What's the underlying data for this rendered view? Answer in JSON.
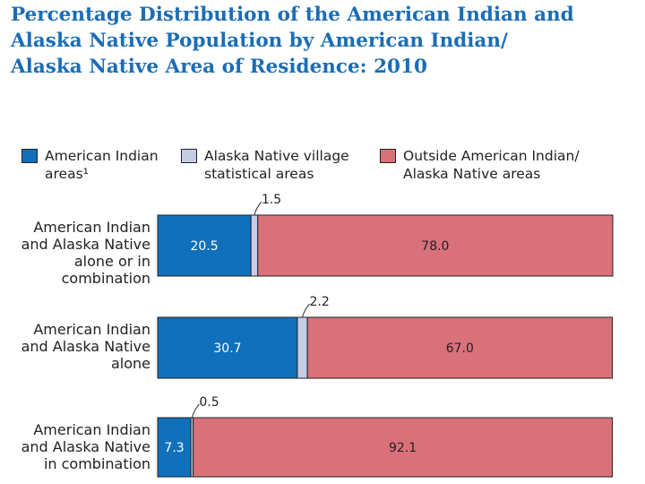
{
  "chart_data": {
    "type": "bar",
    "orientation": "horizontal",
    "stacked": true,
    "title": "Percentage Distribution of the American Indian and Alaska Native Population by American Indian/ Alaska Native Area of Residence: 2010",
    "title_lines": [
      "Percentage Distribution of the American Indian and",
      "Alaska Native Population by American Indian/",
      "Alaska Native Area of Residence: 2010"
    ],
    "categories": [
      "American Indian and Alaska Native alone or in combination",
      "American Indian and Alaska Native alone",
      "American Indian and Alaska Native in combination"
    ],
    "category_lines": [
      [
        "American Indian",
        "and Alaska Native",
        "alone or in",
        "combination"
      ],
      [
        "American Indian",
        "and Alaska Native",
        "alone"
      ],
      [
        "American Indian",
        "and Alaska Native",
        "in combination"
      ]
    ],
    "series": [
      {
        "name": "American Indian areas¹",
        "legend_lines": [
          "American Indian",
          "areas¹"
        ],
        "color": "#1170bb",
        "values": [
          20.5,
          30.7,
          7.3
        ],
        "labels": [
          "20.5",
          "30.7",
          "7.3"
        ]
      },
      {
        "name": "Alaska Native village statistical areas",
        "legend_lines": [
          "Alaska Native village",
          "statistical areas"
        ],
        "color": "#c6cce6",
        "values": [
          1.5,
          2.2,
          0.5
        ],
        "labels": [
          "1.5",
          "2.2",
          "0.5"
        ]
      },
      {
        "name": "Outside American Indian/ Alaska Native areas",
        "legend_lines": [
          "Outside American Indian/",
          "Alaska Native areas"
        ],
        "color": "#d9717a",
        "values": [
          78.0,
          67.0,
          92.1
        ],
        "labels": [
          "78.0",
          "67.0",
          "92.1"
        ]
      }
    ],
    "xlim": [
      0,
      100
    ],
    "legend_position": "top",
    "grid": false
  }
}
